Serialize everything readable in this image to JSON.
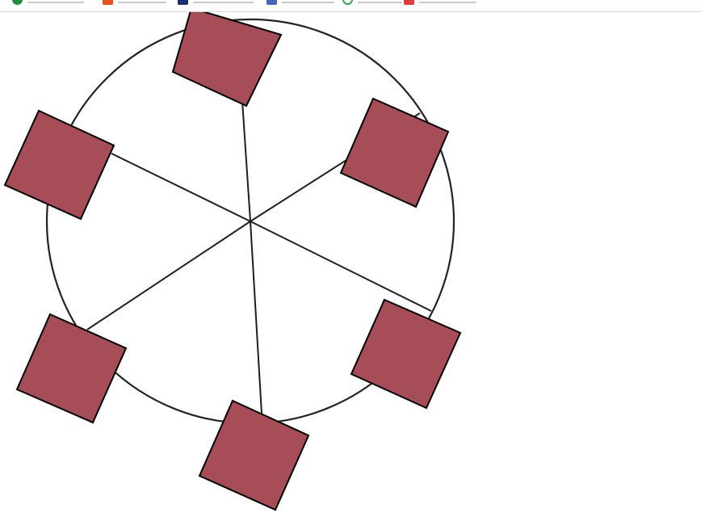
{
  "bookmarks_bar": {
    "items": [
      {
        "icon": "green-circle-icon",
        "color": "#1e8e3e",
        "shape": "round"
      },
      {
        "icon": "orange-square-icon",
        "color": "#e8501c",
        "shape": "square"
      },
      {
        "icon": "navy-square-icon",
        "color": "#1a2f78",
        "shape": "square"
      },
      {
        "icon": "facebook-icon",
        "color": "#4267b2",
        "shape": "square"
      },
      {
        "icon": "green-ring-icon",
        "color": "#34a853",
        "shape": "ring"
      },
      {
        "icon": "red-square-icon",
        "color": "#e03b3b",
        "shape": "square"
      }
    ]
  },
  "diagram": {
    "wheel_stroke": "#222222",
    "spoke_stroke": "#1f1f1f",
    "square_fill": "#a64d57",
    "square_stroke": "#000000",
    "spoke_count": 6,
    "cabin_count": 6
  }
}
